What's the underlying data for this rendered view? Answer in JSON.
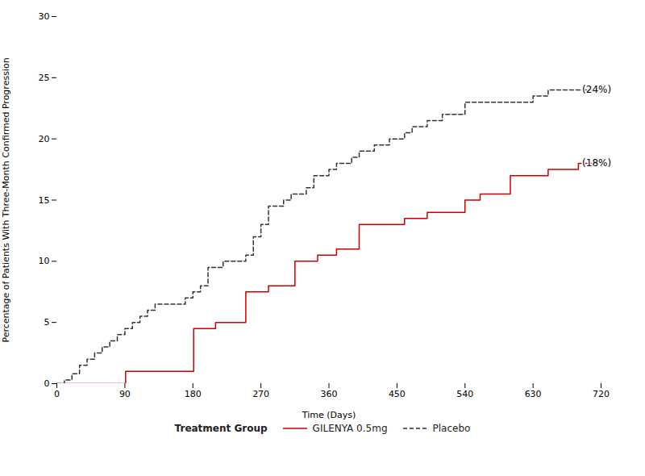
{
  "chart_data": {
    "type": "step",
    "xlabel": "Time (Days)",
    "ylabel": "Percentage of Patients With Three-Month Confirmed Progression",
    "xlim": [
      0,
      720
    ],
    "ylim": [
      0,
      30
    ],
    "xticks": [
      0,
      90,
      180,
      270,
      360,
      450,
      540,
      630,
      720
    ],
    "yticks": [
      0,
      5,
      10,
      15,
      20,
      25,
      30
    ],
    "grid": false,
    "legend": "bottom",
    "legend_title": "Treatment Group",
    "series": [
      {
        "name": "GILENYA 0.5mg",
        "color": "#cc0000",
        "line_style": "solid",
        "x": [
          0,
          30,
          60,
          90,
          91,
          100,
          120,
          150,
          180,
          181,
          190,
          210,
          230,
          250,
          270,
          280,
          300,
          315,
          330,
          345,
          360,
          370,
          380,
          400,
          420,
          440,
          450,
          460,
          470,
          490,
          510,
          540,
          550,
          560,
          580,
          600,
          630,
          650,
          670,
          690,
          720
        ],
        "values": [
          0,
          0,
          0,
          0,
          1,
          1,
          1,
          1,
          1,
          4.5,
          4.5,
          5,
          5,
          7.5,
          7.5,
          8,
          8,
          10,
          10,
          10.5,
          10.5,
          11,
          11,
          13,
          13,
          13,
          13,
          13.5,
          13.5,
          14,
          14,
          15,
          15,
          15.5,
          15.5,
          17,
          17,
          17.5,
          17.5,
          18,
          18
        ]
      },
      {
        "name": "Placebo",
        "color": "#333333",
        "line_style": "dashed",
        "x": [
          0,
          10,
          20,
          30,
          40,
          50,
          60,
          70,
          80,
          90,
          100,
          110,
          120,
          130,
          140,
          150,
          160,
          170,
          180,
          190,
          200,
          210,
          220,
          230,
          250,
          260,
          270,
          280,
          290,
          300,
          310,
          320,
          330,
          340,
          350,
          360,
          370,
          380,
          390,
          400,
          420,
          440,
          450,
          460,
          470,
          490,
          510,
          540,
          560,
          580,
          600,
          620,
          630,
          650,
          670,
          690,
          710,
          720
        ],
        "values": [
          0,
          0.3,
          0.8,
          1.5,
          2,
          2.5,
          3,
          3.5,
          4,
          4.5,
          5,
          5.5,
          6,
          6.5,
          6.5,
          6.5,
          6.5,
          7,
          7.5,
          8,
          9.5,
          9.5,
          10,
          10,
          10.5,
          12,
          13,
          14.5,
          14.5,
          15,
          15.5,
          15.5,
          16,
          17,
          17,
          17.5,
          18,
          18,
          18.5,
          19,
          19.5,
          20,
          20,
          20.5,
          21,
          21.5,
          22,
          23,
          23,
          23,
          23,
          23,
          23.5,
          24,
          24,
          24,
          24,
          24
        ]
      }
    ],
    "annotations": [
      {
        "text": "(24%)",
        "x": 695,
        "y": 24
      },
      {
        "text": "(18%)",
        "x": 695,
        "y": 18
      }
    ]
  }
}
